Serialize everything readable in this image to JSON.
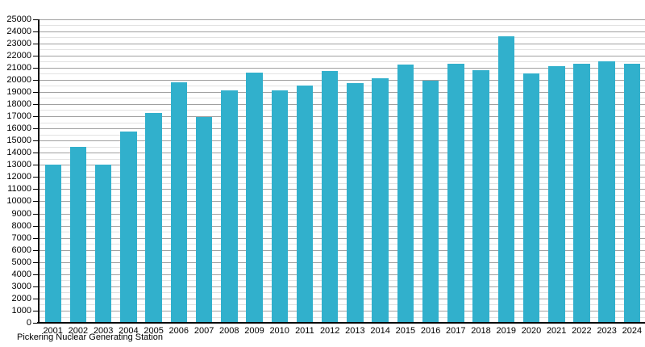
{
  "chart_data": {
    "type": "bar",
    "title": "",
    "caption": "Pickering Nuclear Generating Station",
    "xlabel": "",
    "ylabel": "",
    "categories": [
      "2001",
      "2002",
      "2003",
      "2004",
      "2005",
      "2006",
      "2007",
      "2008",
      "2009",
      "2010",
      "2011",
      "2012",
      "2013",
      "2014",
      "2015",
      "2016",
      "2017",
      "2018",
      "2019",
      "2020",
      "2021",
      "2022",
      "2023",
      "2024"
    ],
    "values": [
      13000,
      14450,
      13050,
      15750,
      17300,
      19800,
      16950,
      19150,
      20600,
      19150,
      19550,
      20700,
      19700,
      20100,
      21250,
      19950,
      21350,
      20800,
      23600,
      20500,
      21150,
      21350,
      21500,
      21330
    ],
    "ylim": [
      0,
      25000
    ],
    "y_major_step": 1000,
    "y_minor_step": 500,
    "y_tick_labels": [
      "0",
      "1000",
      "2000",
      "3000",
      "4000",
      "5000",
      "6000",
      "7000",
      "8000",
      "9000",
      "10000",
      "11000",
      "12000",
      "13000",
      "14000",
      "15000",
      "16000",
      "17000",
      "18000",
      "19000",
      "20000",
      "21000",
      "22000",
      "23000",
      "24000",
      "25000"
    ],
    "grid": true,
    "legend_position": "none",
    "colors": {
      "bar": "#31B0CC",
      "major_grid": "#a0a0a0",
      "minor_grid": "#e2e2e2",
      "axis": "#000000",
      "text": "#000000",
      "background": "#ffffff"
    }
  }
}
